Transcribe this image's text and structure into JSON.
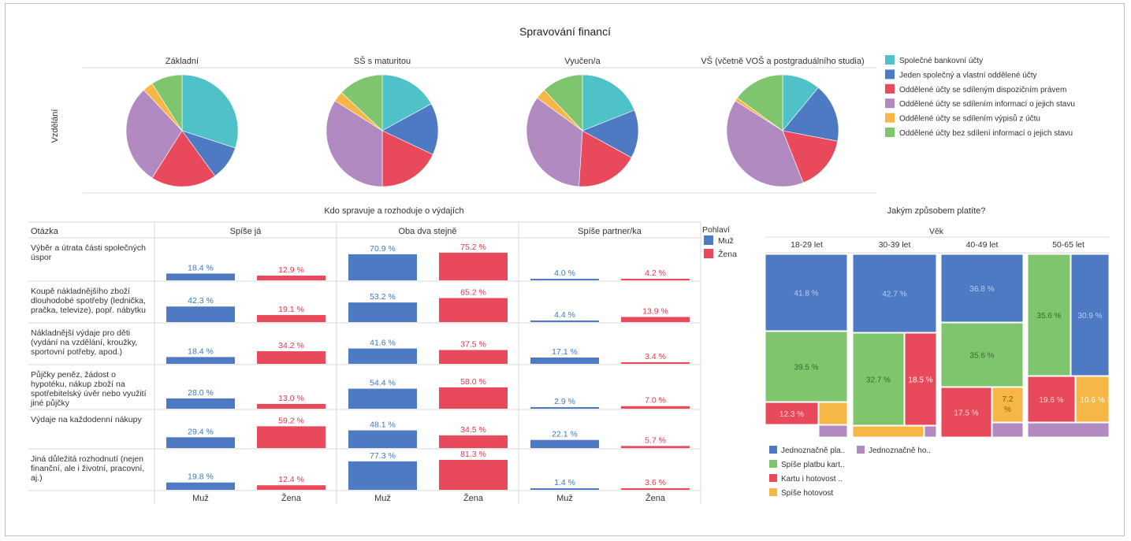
{
  "dashboard_title": "Spravování financí",
  "colors": {
    "teal": "#4fc1c9",
    "blue": "#4e79c3",
    "red": "#e84a5b",
    "purple": "#b18ac2",
    "orange": "#f7b747",
    "green": "#7ec56e",
    "blue_text": "#3a78c6",
    "red_text": "#e2394b"
  },
  "chart_data": [
    {
      "type": "pie",
      "title": "",
      "row_label": "Vzdělání",
      "legend": [
        "Společné bankovní účty",
        "Jeden společný a vlastní oddělené účty",
        "Oddělené účty se sdíleným dispozičním právem",
        "Oddělené účty se sdílením informací o jejich stavu",
        "Oddělené účty se sdílením výpisů z účtu",
        "Oddělené účty bez sdílení informací o jejich stavu"
      ],
      "legend_colors": [
        "#4fc1c9",
        "#4e79c3",
        "#e84a5b",
        "#b18ac2",
        "#f7b747",
        "#7ec56e"
      ],
      "panels": [
        {
          "label": "Základní",
          "values": [
            30,
            10,
            19,
            29,
            3,
            9
          ]
        },
        {
          "label": "SŠ s maturitou",
          "values": [
            17,
            15,
            18,
            34,
            3,
            13
          ]
        },
        {
          "label": "Vyučen/a",
          "values": [
            19,
            14,
            18,
            34,
            3,
            12
          ]
        },
        {
          "label": "VŠ (včetně VOŠ a postgraduálního studia)",
          "values": [
            11,
            17,
            16,
            40,
            1,
            15
          ]
        }
      ]
    },
    {
      "type": "bar",
      "title": "Kdo spravuje a rozhoduje o výdajích",
      "row_header": "Otázka",
      "columns": [
        "Spíše já",
        "Oba dva stejně",
        "Spíše partner/ka"
      ],
      "sub_columns": [
        "Muž",
        "Žena"
      ],
      "legend_title": "Pohlaví",
      "series": [
        {
          "name": "Muž",
          "color": "#4e79c3"
        },
        {
          "name": "Žena",
          "color": "#e84a5b"
        }
      ],
      "rows": [
        {
          "label": [
            "Výběr a útrata části společných",
            "úspor"
          ],
          "values": [
            [
              18.4,
              12.9
            ],
            [
              70.9,
              75.2
            ],
            [
              4.0,
              4.2
            ]
          ],
          "labels": [
            [
              "18.4 %",
              "12.9 %"
            ],
            [
              "70.9 %",
              "75.2 %"
            ],
            [
              "4.0 %",
              "4.2 %"
            ]
          ]
        },
        {
          "label": [
            "Koupě nákladnějšího zboží",
            "dlouhodobé spotřeby (lednička,",
            "pračka, televize), popř. nábytku"
          ],
          "values": [
            [
              42.3,
              19.1
            ],
            [
              53.2,
              65.2
            ],
            [
              4.4,
              13.9
            ]
          ],
          "labels": [
            [
              "42.3 %",
              "19.1 %"
            ],
            [
              "53.2 %",
              "65.2 %"
            ],
            [
              "4.4 %",
              "13.9 %"
            ]
          ]
        },
        {
          "label": [
            "Nákladnější výdaje pro děti",
            "(vydání na vzdělání, kroužky,",
            "sportovní potřeby, apod.)"
          ],
          "values": [
            [
              18.4,
              34.2
            ],
            [
              41.6,
              37.5
            ],
            [
              17.1,
              3.4
            ]
          ],
          "labels": [
            [
              "18.4 %",
              "34.2 %"
            ],
            [
              "41.6 %",
              "37.5 %"
            ],
            [
              "17.1 %",
              "3.4 %"
            ]
          ]
        },
        {
          "label": [
            "Půjčky peněz, žádost o",
            "hypotéku, nákup zboží na",
            "spotřebitelský úvěr nebo využití",
            "jiné půjčky"
          ],
          "values": [
            [
              28.0,
              13.0
            ],
            [
              54.4,
              58.0
            ],
            [
              2.9,
              7.0
            ]
          ],
          "labels": [
            [
              "28.0 %",
              "13.0 %"
            ],
            [
              "54.4 %",
              "58.0 %"
            ],
            [
              "2.9 %",
              "7.0 %"
            ]
          ]
        },
        {
          "label": [
            "Výdaje na každodenní nákupy"
          ],
          "values": [
            [
              29.4,
              59.2
            ],
            [
              48.1,
              34.5
            ],
            [
              22.1,
              5.7
            ]
          ],
          "labels": [
            [
              "29.4 %",
              "59.2 %"
            ],
            [
              "48.1 %",
              "34.5 %"
            ],
            [
              "22.1 %",
              "5.7 %"
            ]
          ]
        },
        {
          "label": [
            "Jiná důležitá rozhodnutí (nejen",
            "finanční, ale i životní, pracovní,",
            "aj.)"
          ],
          "values": [
            [
              19.8,
              12.4
            ],
            [
              77.3,
              81.3
            ],
            [
              1.4,
              3.6
            ]
          ],
          "labels": [
            [
              "19.8 %",
              "12.4 %"
            ],
            [
              "77.3 %",
              "81.3 %"
            ],
            [
              "1.4 %",
              "3.6 %"
            ]
          ]
        }
      ]
    },
    {
      "type": "treemap",
      "title": "Jakým způsobem platíte?",
      "group_header": "Věk",
      "legend": [
        "Jednoznačně pla..",
        "Jednoznačně ho..",
        "Spíše platbu kart..",
        "Kartu i hotovost ..",
        "Spíše hotovost"
      ],
      "legend_colors": [
        "#4e79c3",
        "#b18ac2",
        "#7ec56e",
        "#e84a5b",
        "#f7b747"
      ],
      "groups": [
        {
          "label": "18-29 let",
          "cells": [
            {
              "series": "Jednoznačně pla..",
              "value": 41.8,
              "label": "41.8 %"
            },
            {
              "series": "Spíše platbu kart..",
              "value": 39.5,
              "label": "39.5 %"
            },
            {
              "series": "Kartu i hotovost ..",
              "value": 12.3,
              "label": "12.3 %"
            },
            {
              "series": "Spíše hotovost",
              "value": null,
              "label": ""
            },
            {
              "series": "Jednoznačně ho..",
              "value": null,
              "label": ""
            }
          ]
        },
        {
          "label": "30-39 let",
          "cells": [
            {
              "series": "Jednoznačně pla..",
              "value": 42.7,
              "label": "42.7 %"
            },
            {
              "series": "Spíše platbu kart..",
              "value": 32.7,
              "label": "32.7 %"
            },
            {
              "series": "Kartu i hotovost ..",
              "value": 18.5,
              "label": "18.5 %"
            },
            {
              "series": "Spíše hotovost",
              "value": null,
              "label": ""
            },
            {
              "series": "Jednoznačně ho..",
              "value": null,
              "label": ""
            }
          ]
        },
        {
          "label": "40-49 let",
          "cells": [
            {
              "series": "Jednoznačně pla..",
              "value": 36.8,
              "label": "36.8 %"
            },
            {
              "series": "Spíše platbu kart..",
              "value": 35.6,
              "label": "35.6 %"
            },
            {
              "series": "Kartu i hotovost ..",
              "value": 17.5,
              "label": "17.5 %"
            },
            {
              "series": "Spíše hotovost",
              "value": 7.2,
              "label": "7.2 %"
            },
            {
              "series": "Jednoznačně ho..",
              "value": null,
              "label": ""
            }
          ]
        },
        {
          "label": "50-65 let",
          "cells": [
            {
              "series": "Spíše platbu kart..",
              "value": 35.6,
              "label": "35.6 %"
            },
            {
              "series": "Jednoznačně pla..",
              "value": 30.9,
              "label": "30.9 %"
            },
            {
              "series": "Kartu i hotovost ..",
              "value": 19.6,
              "label": "19.6 %"
            },
            {
              "series": "Spíše hotovost",
              "value": 10.6,
              "label": "10.6 %"
            },
            {
              "series": "Jednoznačně ho..",
              "value": null,
              "label": ""
            }
          ]
        }
      ]
    }
  ]
}
